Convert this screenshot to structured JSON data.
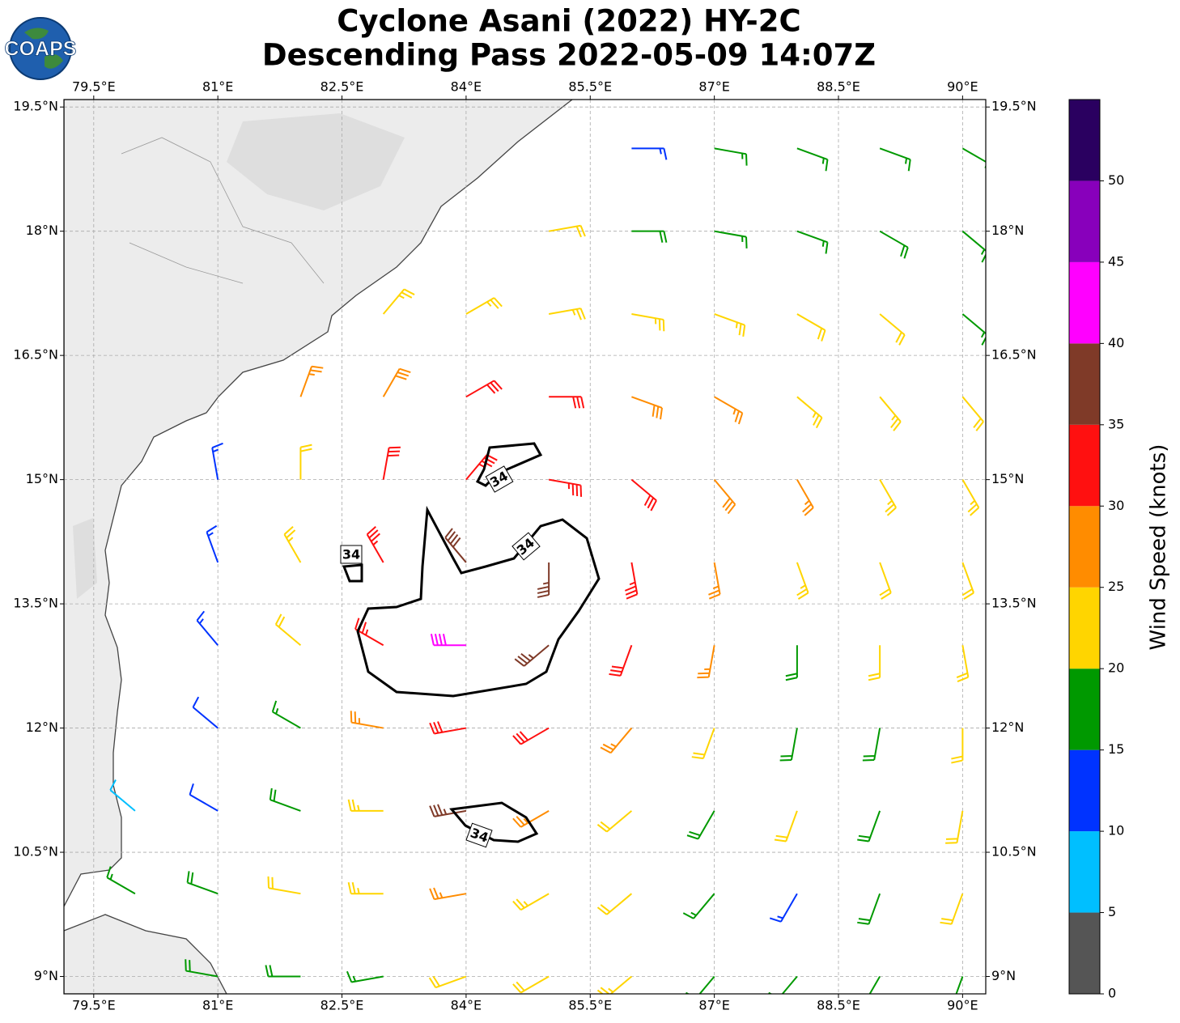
{
  "map": {
    "title": [
      "Cyclone Asani (2022) HY-2C",
      "Descending Pass 2022-05-09 14:07Z"
    ],
    "logo_text": "COAPS",
    "xlim": [
      79.14,
      90.28
    ],
    "ylim": [
      8.79,
      19.59
    ],
    "xticks": [
      {
        "value": 79.5,
        "label": "79.5°E"
      },
      {
        "value": 81,
        "label": "81°E"
      },
      {
        "value": 82.5,
        "label": "82.5°E"
      },
      {
        "value": 84,
        "label": "84°E"
      },
      {
        "value": 85.5,
        "label": "85.5°E"
      },
      {
        "value": 87,
        "label": "87°E"
      },
      {
        "value": 88.5,
        "label": "88.5°E"
      },
      {
        "value": 90,
        "label": "90°E"
      }
    ],
    "yticks": [
      {
        "value": 9,
        "label": "9°N"
      },
      {
        "value": 10.5,
        "label": "10.5°N"
      },
      {
        "value": 12,
        "label": "12°N"
      },
      {
        "value": 13.5,
        "label": "13.5°N"
      },
      {
        "value": 15,
        "label": "15°N"
      },
      {
        "value": 16.5,
        "label": "16.5°N"
      },
      {
        "value": 18,
        "label": "18°N"
      },
      {
        "value": 19.5,
        "label": "19.5°N"
      }
    ],
    "grid": true,
    "contour_level": 34,
    "wind": {
      "lons": [
        80,
        81,
        82,
        83,
        84,
        85,
        86,
        87,
        88,
        89,
        90
      ],
      "lats": [
        19,
        18,
        17,
        16,
        15,
        14,
        13,
        12,
        11,
        10,
        9
      ],
      "speed": [
        [
          null,
          null,
          null,
          null,
          null,
          null,
          13,
          17,
          17,
          17,
          15
        ],
        [
          null,
          null,
          null,
          null,
          null,
          22,
          18,
          17,
          17,
          18,
          16
        ],
        [
          null,
          null,
          null,
          23,
          24,
          24,
          24,
          23,
          22,
          21,
          17
        ],
        [
          null,
          null,
          27,
          28,
          30,
          30,
          28,
          26,
          24,
          23,
          22
        ],
        [
          null,
          13,
          22,
          30,
          34,
          34,
          32,
          28,
          26,
          24,
          23
        ],
        [
          null,
          13,
          24,
          33,
          38,
          37,
          33,
          27,
          24,
          22,
          22
        ],
        [
          null,
          13,
          22,
          34,
          42,
          37,
          30,
          25,
          18,
          20,
          22
        ],
        [
          null,
          12,
          17,
          26,
          32,
          30,
          25,
          20,
          18,
          18,
          20
        ],
        [
          9,
          12,
          18,
          23,
          36,
          26,
          22,
          18,
          20,
          18,
          22
        ],
        [
          17,
          19,
          21,
          23,
          26,
          24,
          22,
          17,
          14,
          18,
          22
        ],
        [
          null,
          18,
          18,
          16,
          21,
          22,
          23,
          18,
          18,
          16,
          15
        ]
      ],
      "direction": [
        [
          null,
          null,
          null,
          null,
          null,
          null,
          90,
          100,
          110,
          110,
          120
        ],
        [
          null,
          null,
          null,
          null,
          null,
          80,
          90,
          100,
          110,
          120,
          130
        ],
        [
          null,
          null,
          null,
          40,
          60,
          80,
          100,
          110,
          120,
          130,
          130
        ],
        [
          null,
          null,
          20,
          30,
          60,
          90,
          110,
          120,
          130,
          140,
          140
        ],
        [
          null,
          350,
          0,
          10,
          40,
          100,
          130,
          140,
          150,
          150,
          150
        ],
        [
          null,
          340,
          330,
          330,
          320,
          180,
          170,
          170,
          160,
          160,
          160
        ],
        [
          null,
          320,
          310,
          300,
          270,
          230,
          200,
          190,
          180,
          180,
          170
        ],
        [
          null,
          310,
          300,
          280,
          260,
          240,
          220,
          200,
          190,
          190,
          180
        ],
        [
          310,
          300,
          290,
          270,
          260,
          240,
          230,
          210,
          200,
          200,
          190
        ],
        [
          300,
          290,
          280,
          270,
          260,
          240,
          230,
          220,
          210,
          200,
          200
        ],
        [
          null,
          280,
          270,
          260,
          250,
          240,
          230,
          220,
          220,
          210,
          200
        ]
      ]
    },
    "colorbar": {
      "label": "Wind Speed (knots)",
      "bounds": [
        0,
        5,
        10,
        15,
        20,
        25,
        30,
        35,
        40,
        45,
        50,
        55
      ],
      "colors": [
        "#555555",
        "#00bfff",
        "#0033ff",
        "#009900",
        "#ffd500",
        "#ff8c00",
        "#ff1010",
        "#7f3a28",
        "#ff00ff",
        "#8800bb",
        "#2a0060"
      ],
      "ticks": [
        0,
        5,
        10,
        15,
        20,
        25,
        30,
        35,
        40,
        45,
        50
      ]
    }
  }
}
